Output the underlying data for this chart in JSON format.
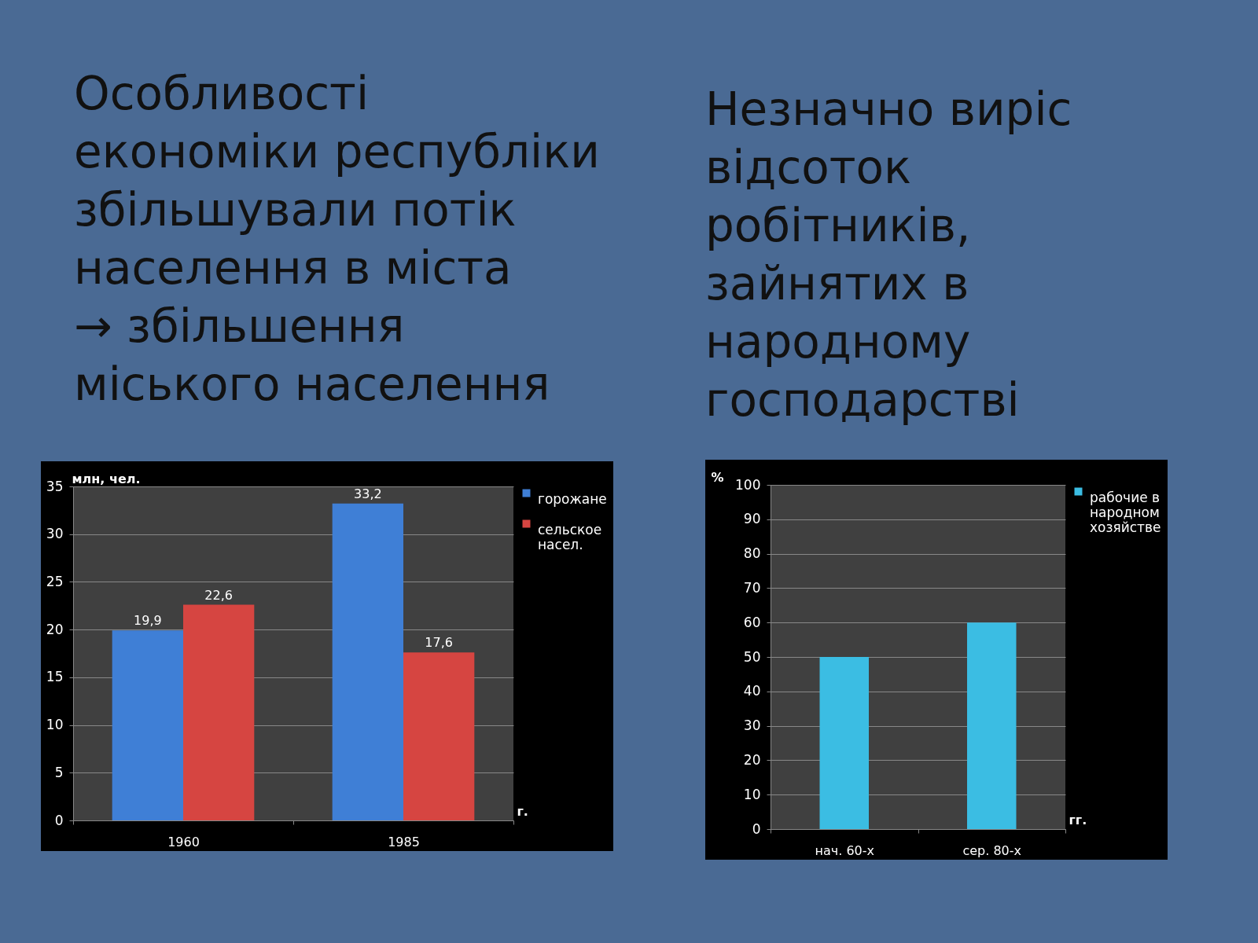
{
  "chart_data": [
    {
      "type": "bar",
      "title": "Особливості\nекономіки республіки\nзбільшували потік\nнаселення в міста\n→ збільшення\nміського населення",
      "ylabel": "млн, чел.",
      "xlabel": "г.",
      "categories": [
        "1960",
        "1985"
      ],
      "series": [
        {
          "name": "горожане",
          "color": "#3f7fd6",
          "values": [
            19.9,
            33.2
          ],
          "value_labels": [
            "19,9",
            "33,2"
          ]
        },
        {
          "name": "сельское насел.",
          "color": "#d64541",
          "values": [
            22.6,
            17.6
          ],
          "value_labels": [
            "22,6",
            "17,6"
          ]
        }
      ],
      "ylim": [
        0,
        35
      ],
      "yticks": [
        0,
        5,
        10,
        15,
        20,
        25,
        30,
        35
      ],
      "grid": "y",
      "legend": "right"
    },
    {
      "type": "bar",
      "title": "Незначно виріс\nвідсоток\nробітників,\nзайнятих в\nнародному\nгосподарстві",
      "ylabel": "%",
      "xlabel": "гг.",
      "categories": [
        "нач. 60-х",
        "сер. 80-х"
      ],
      "series": [
        {
          "name": "рабочие в народном хозяйстве",
          "color": "#3bbde3",
          "values": [
            50,
            60
          ]
        }
      ],
      "ylim": [
        0,
        100
      ],
      "yticks": [
        0,
        10,
        20,
        30,
        40,
        50,
        60,
        70,
        80,
        90,
        100
      ],
      "grid": "y",
      "legend": "right"
    }
  ]
}
